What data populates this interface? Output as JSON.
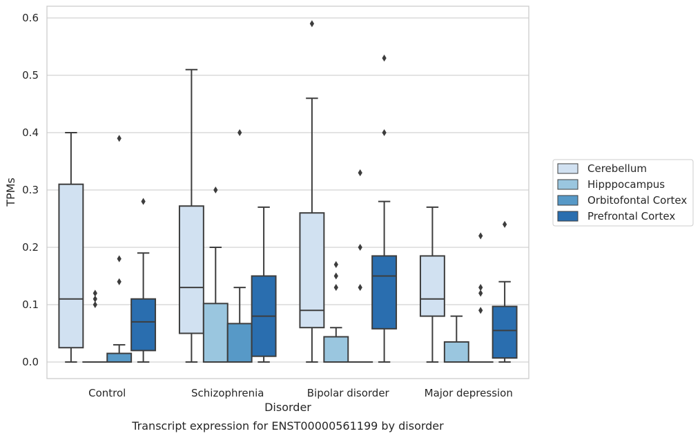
{
  "chart_data": {
    "type": "box",
    "xlabel": "Disorder",
    "ylabel": "TPMs",
    "caption": "Transcript expression for ENST00000561199 by disorder",
    "ylim": [
      -0.03,
      0.62
    ],
    "yticks": [
      "0.0",
      "0.1",
      "0.2",
      "0.3",
      "0.4",
      "0.5",
      "0.6"
    ],
    "grid": "horizontal",
    "legend_position": "right",
    "categories": [
      "Control",
      "Schizophrenia",
      "Bipolar disorder",
      "Major depression"
    ],
    "series": [
      {
        "name": "Cerebellum",
        "color": "#d1e1f1",
        "boxes": [
          {
            "whislo": 0.0,
            "q1": 0.025,
            "med": 0.11,
            "q3": 0.31,
            "whishi": 0.4,
            "fliers": []
          },
          {
            "whislo": 0.0,
            "q1": 0.05,
            "med": 0.13,
            "q3": 0.272,
            "whishi": 0.51,
            "fliers": []
          },
          {
            "whislo": 0.0,
            "q1": 0.06,
            "med": 0.09,
            "q3": 0.26,
            "whishi": 0.46,
            "fliers": [
              0.59
            ]
          },
          {
            "whislo": 0.0,
            "q1": 0.08,
            "med": 0.11,
            "q3": 0.185,
            "whishi": 0.27,
            "fliers": []
          }
        ]
      },
      {
        "name": "Hipppocampus",
        "color": "#9ac6df",
        "boxes": [
          {
            "whislo": 0.0,
            "q1": 0.0,
            "med": 0.0,
            "q3": 0.0,
            "whishi": 0.0,
            "fliers": [
              0.1,
              0.11,
              0.12
            ]
          },
          {
            "whislo": 0.0,
            "q1": 0.0,
            "med": 0.0,
            "q3": 0.102,
            "whishi": 0.2,
            "fliers": [
              0.3
            ]
          },
          {
            "whislo": 0.0,
            "q1": 0.0,
            "med": 0.0,
            "q3": 0.044,
            "whishi": 0.06,
            "fliers": [
              0.13,
              0.15,
              0.17
            ]
          },
          {
            "whislo": 0.0,
            "q1": 0.0,
            "med": 0.0,
            "q3": 0.035,
            "whishi": 0.08,
            "fliers": []
          }
        ]
      },
      {
        "name": "Orbitofontal Cortex",
        "color": "#5799c7",
        "boxes": [
          {
            "whislo": 0.0,
            "q1": 0.0,
            "med": 0.0,
            "q3": 0.015,
            "whishi": 0.03,
            "fliers": [
              0.14,
              0.18,
              0.39
            ]
          },
          {
            "whislo": 0.0,
            "q1": 0.0,
            "med": 0.0,
            "q3": 0.067,
            "whishi": 0.13,
            "fliers": [
              0.4
            ]
          },
          {
            "whislo": 0.0,
            "q1": 0.0,
            "med": 0.0,
            "q3": 0.0,
            "whishi": 0.0,
            "fliers": [
              0.13,
              0.2,
              0.33
            ]
          },
          {
            "whislo": 0.0,
            "q1": 0.0,
            "med": 0.0,
            "q3": 0.0,
            "whishi": 0.0,
            "fliers": [
              0.09,
              0.12,
              0.13,
              0.22
            ]
          }
        ]
      },
      {
        "name": "Prefrontal Cortex",
        "color": "#2a6eaf",
        "boxes": [
          {
            "whislo": 0.0,
            "q1": 0.02,
            "med": 0.07,
            "q3": 0.11,
            "whishi": 0.19,
            "fliers": [
              0.28
            ]
          },
          {
            "whislo": 0.0,
            "q1": 0.01,
            "med": 0.08,
            "q3": 0.15,
            "whishi": 0.27,
            "fliers": []
          },
          {
            "whislo": 0.0,
            "q1": 0.058,
            "med": 0.15,
            "q3": 0.185,
            "whishi": 0.28,
            "fliers": [
              0.4,
              0.53
            ]
          },
          {
            "whislo": 0.0,
            "q1": 0.007,
            "med": 0.055,
            "q3": 0.097,
            "whishi": 0.14,
            "fliers": [
              0.24
            ]
          }
        ]
      }
    ]
  }
}
